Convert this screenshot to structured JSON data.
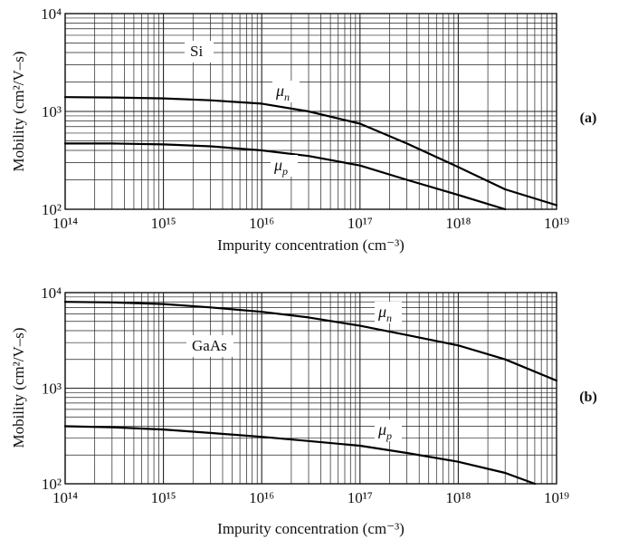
{
  "chart_data": [
    {
      "type": "line",
      "panel_label": "(a)",
      "material": "Si",
      "xlabel": "Impurity concentration (cm⁻³)",
      "ylabel": "Mobility (cm²/V–s)",
      "x_scale": "log",
      "y_scale": "log",
      "xlim": [
        100000000000000.0,
        1e+19
      ],
      "ylim": [
        100,
        10000
      ],
      "x_ticks": [
        "10¹⁴",
        "10¹⁵",
        "10¹⁶",
        "10¹⁷",
        "10¹⁸",
        "10¹⁹"
      ],
      "y_ticks": [
        "10²",
        "10³",
        "10⁴"
      ],
      "grid": true,
      "series": [
        {
          "name": "μn",
          "x": [
            100000000000000.0,
            300000000000000.0,
            1000000000000000.0,
            3000000000000000.0,
            1e+16,
            3e+16,
            1e+17,
            3e+17,
            1e+18,
            3e+18,
            1e+19
          ],
          "y": [
            1400,
            1390,
            1360,
            1300,
            1200,
            1000,
            750,
            470,
            270,
            160,
            110
          ]
        },
        {
          "name": "μp",
          "x": [
            100000000000000.0,
            300000000000000.0,
            1000000000000000.0,
            3000000000000000.0,
            1e+16,
            3e+16,
            1e+17,
            3e+17,
            1e+18,
            3e+18
          ],
          "y": [
            470,
            470,
            460,
            440,
            400,
            350,
            280,
            200,
            140,
            100
          ]
        }
      ]
    },
    {
      "type": "line",
      "panel_label": "(b)",
      "material": "GaAs",
      "xlabel": "Impurity concentration (cm⁻³)",
      "ylabel": "Mobility (cm²/V–s)",
      "x_scale": "log",
      "y_scale": "log",
      "xlim": [
        100000000000000.0,
        1e+19
      ],
      "ylim": [
        100,
        10000
      ],
      "x_ticks": [
        "10¹⁴",
        "10¹⁵",
        "10¹⁶",
        "10¹⁷",
        "10¹⁸",
        "10¹⁹"
      ],
      "y_ticks": [
        "10²",
        "10³",
        "10⁴"
      ],
      "grid": true,
      "series": [
        {
          "name": "μn",
          "x": [
            100000000000000.0,
            300000000000000.0,
            1000000000000000.0,
            3000000000000000.0,
            1e+16,
            3e+16,
            1e+17,
            3e+17,
            1e+18,
            3e+18,
            1e+19
          ],
          "y": [
            8000,
            7900,
            7600,
            7000,
            6300,
            5500,
            4500,
            3600,
            2800,
            2000,
            1200
          ]
        },
        {
          "name": "μp",
          "x": [
            100000000000000.0,
            300000000000000.0,
            1000000000000000.0,
            3000000000000000.0,
            1e+16,
            3e+16,
            1e+17,
            3e+17,
            1e+18,
            3e+18,
            6e+18
          ],
          "y": [
            400,
            390,
            370,
            340,
            310,
            280,
            250,
            210,
            170,
            130,
            100
          ]
        }
      ]
    }
  ]
}
